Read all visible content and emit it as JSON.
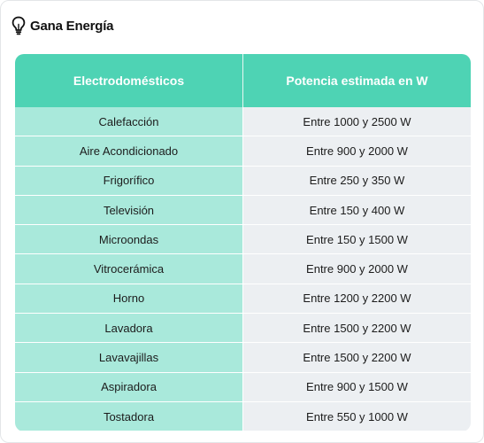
{
  "brand": {
    "name": "Gana Energía",
    "icon": "lightbulb-icon",
    "accent": "#4ed3b4"
  },
  "table": {
    "headers": [
      "Electrodomésticos",
      "Potencia estimada en W"
    ],
    "rows": [
      [
        "Calefacción",
        "Entre 1000 y 2500 W"
      ],
      [
        "Aire Acondicionado",
        "Entre 900 y 2000 W"
      ],
      [
        "Frigorífico",
        "Entre 250 y 350 W"
      ],
      [
        "Televisión",
        "Entre 150 y 400 W"
      ],
      [
        "Microondas",
        "Entre 150 y 1500 W"
      ],
      [
        "Vitrocerámica",
        "Entre 900 y 2000 W"
      ],
      [
        "Horno",
        "Entre 1200 y 2200 W"
      ],
      [
        "Lavadora",
        "Entre 1500 y 2200 W"
      ],
      [
        "Lavavajillas",
        "Entre 1500 y 2200 W"
      ],
      [
        "Aspiradora",
        "Entre 900 y 1500 W"
      ],
      [
        "Tostadora",
        "Entre 550 y 1000 W"
      ]
    ]
  },
  "colors": {
    "header_bg": "#4ed3b4",
    "col1_bg": "#a9e9db",
    "col2_bg": "#eceff2"
  }
}
